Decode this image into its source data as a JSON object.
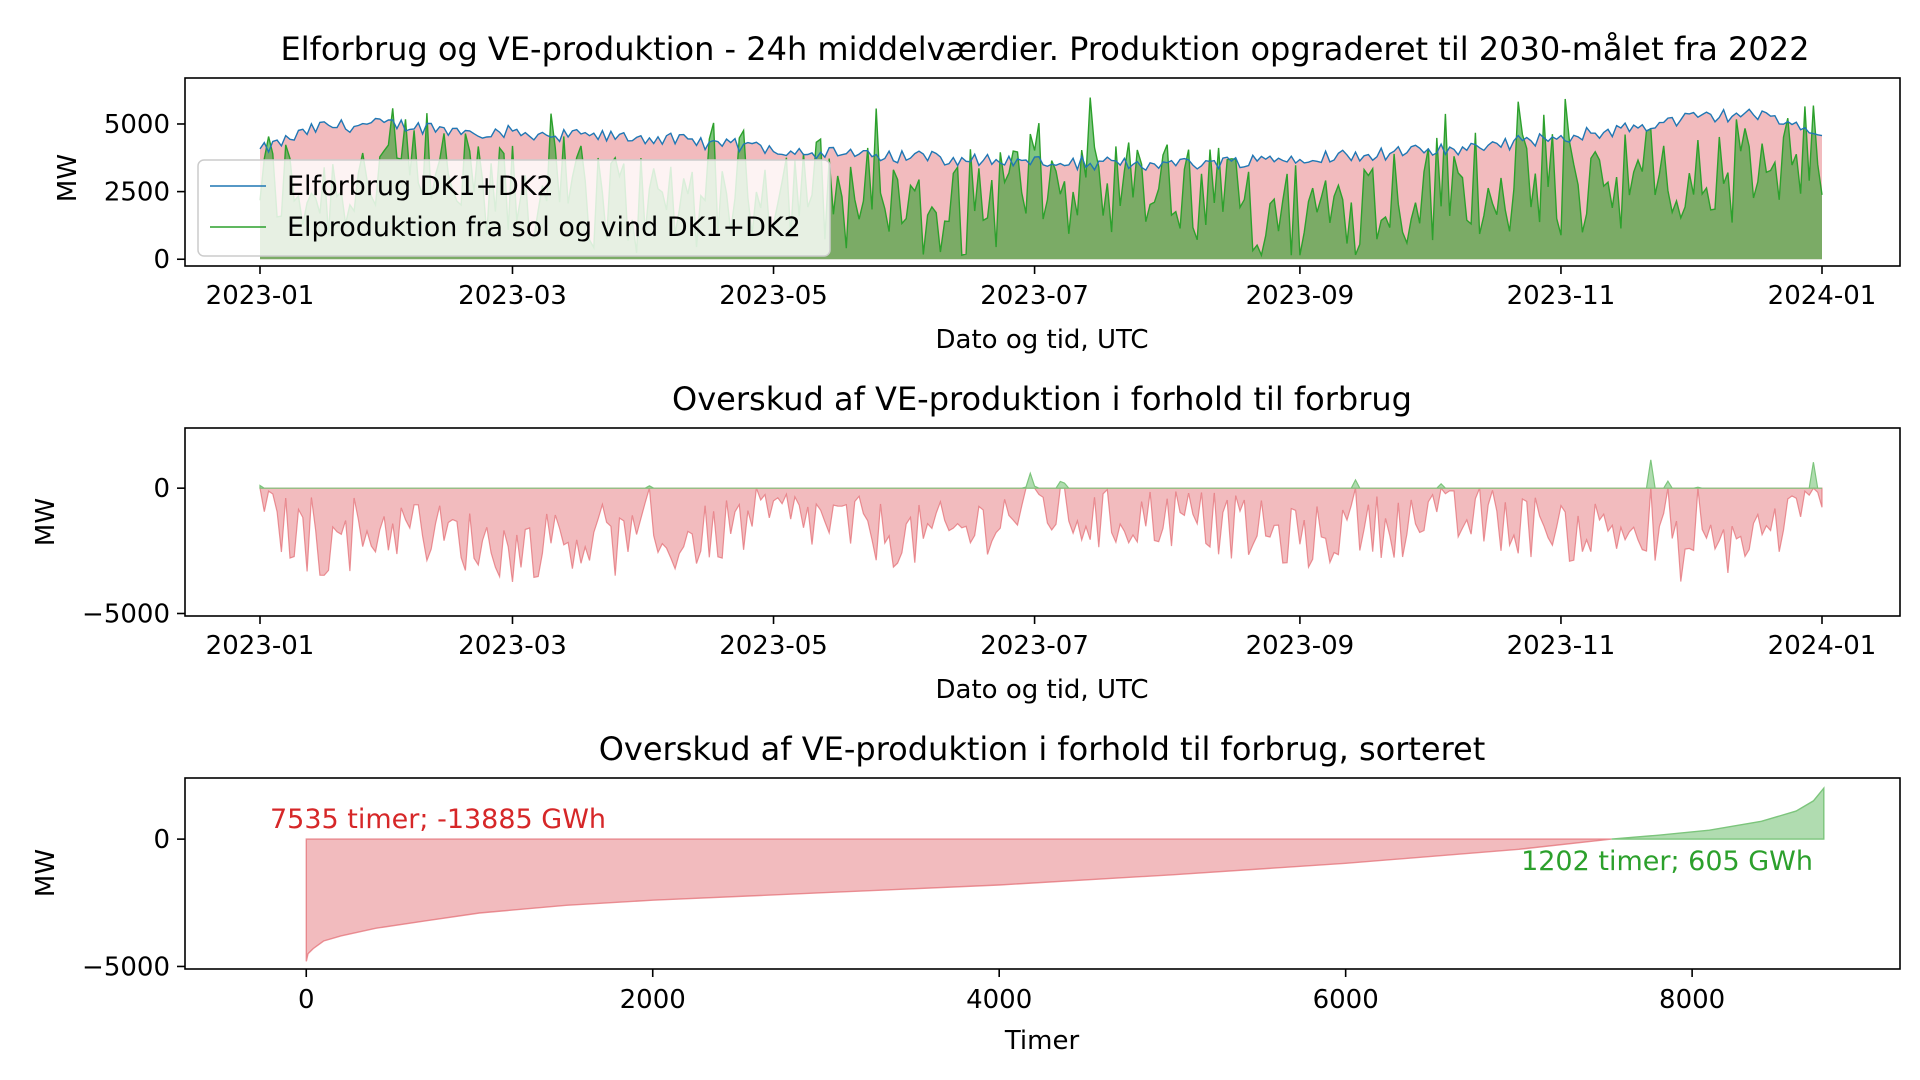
{
  "colors": {
    "consumption": "#1f77b4",
    "production": "#2ca02c",
    "production_fill": "#2ca02c",
    "deficit_fill": "#e3686f",
    "surplus_fill": "#7cc57c",
    "deficit_text": "#d62728",
    "surplus_text": "#2ca02c"
  },
  "chart_data": [
    {
      "type": "area",
      "title": "Elforbrug og VE-produktion - 24h middelværdier. Produktion opgraderet til 2030-målet fra 2022",
      "xlabel": "Dato og tid, UTC",
      "ylabel": "MW",
      "x_range": [
        "2023-01-01",
        "2024-01-01"
      ],
      "ylim": [
        -250,
        6700
      ],
      "xticks": [
        "2023-01",
        "2023-03",
        "2023-05",
        "2023-07",
        "2023-09",
        "2023-11",
        "2024-01"
      ],
      "yticks": [
        0,
        2500,
        5000
      ],
      "ytick_labels": [
        "0",
        "2500",
        "5000"
      ],
      "legend_position": "center-left",
      "series": [
        {
          "name": "Elforbrug DK1+DK2",
          "x": [
            "2023-01-01",
            "2023-01-15",
            "2023-02-01",
            "2023-02-15",
            "2023-03-01",
            "2023-03-15",
            "2023-04-01",
            "2023-04-15",
            "2023-05-01",
            "2023-05-15",
            "2023-06-01",
            "2023-06-15",
            "2023-07-01",
            "2023-07-15",
            "2023-08-01",
            "2023-08-15",
            "2023-09-01",
            "2023-09-15",
            "2023-10-01",
            "2023-10-15",
            "2023-11-01",
            "2023-11-15",
            "2023-12-01",
            "2023-12-15",
            "2024-01-01"
          ],
          "values": [
            4000,
            4900,
            5000,
            4750,
            4700,
            4550,
            4500,
            4300,
            4100,
            3900,
            3800,
            3700,
            3600,
            3550,
            3500,
            3600,
            3800,
            3850,
            4000,
            4200,
            4500,
            4800,
            5200,
            5400,
            4600
          ]
        },
        {
          "name": "Elproduktion fra sol og vind DK1+DK2",
          "x": [
            "2023-01-01",
            "2023-01-15",
            "2023-02-01",
            "2023-02-15",
            "2023-03-01",
            "2023-03-15",
            "2023-04-01",
            "2023-04-15",
            "2023-05-01",
            "2023-05-15",
            "2023-06-01",
            "2023-06-15",
            "2023-07-01",
            "2023-07-15",
            "2023-08-01",
            "2023-08-15",
            "2023-09-01",
            "2023-09-15",
            "2023-10-01",
            "2023-10-15",
            "2023-11-01",
            "2023-11-15",
            "2023-12-01",
            "2023-12-15",
            "2024-01-01"
          ],
          "values": [
            3000,
            2500,
            3500,
            2800,
            2200,
            2600,
            2000,
            2400,
            3000,
            2500,
            1800,
            2000,
            3000,
            2200,
            2400,
            2100,
            1700,
            2300,
            2600,
            3000,
            2800,
            3200,
            2600,
            3400,
            3800
          ]
        }
      ]
    },
    {
      "type": "area",
      "title": "Overskud af VE-produktion i forhold til forbrug",
      "xlabel": "Dato og tid, UTC",
      "ylabel": "MW",
      "x_range": [
        "2023-01-01",
        "2024-01-01"
      ],
      "ylim": [
        -5100,
        2400
      ],
      "xticks": [
        "2023-01",
        "2023-03",
        "2023-05",
        "2023-07",
        "2023-09",
        "2023-11",
        "2024-01"
      ],
      "yticks": [
        -5000,
        0
      ],
      "ytick_labels": [
        "−5000",
        "0"
      ],
      "series": [
        {
          "x": [
            "2023-01-01",
            "2023-01-15",
            "2023-02-01",
            "2023-02-15",
            "2023-03-01",
            "2023-03-15",
            "2023-04-01",
            "2023-04-15",
            "2023-05-01",
            "2023-05-15",
            "2023-06-01",
            "2023-06-15",
            "2023-07-01",
            "2023-07-15",
            "2023-08-01",
            "2023-08-15",
            "2023-09-01",
            "2023-09-15",
            "2023-10-01",
            "2023-10-15",
            "2023-11-01",
            "2023-11-15",
            "2023-12-01",
            "2023-12-15",
            "2024-01-01"
          ],
          "values": [
            -1000,
            -2400,
            -1500,
            -1950,
            -2500,
            -1950,
            -2500,
            -1900,
            -1100,
            -1400,
            -2000,
            -1700,
            -600,
            -1350,
            -1100,
            -1500,
            -2100,
            -1550,
            -1400,
            -1200,
            -1700,
            -1600,
            -2600,
            -2000,
            -800
          ]
        }
      ]
    },
    {
      "type": "area",
      "title": "Overskud af VE-produktion i forhold til forbrug, sorteret",
      "xlabel": "Timer",
      "ylabel": "MW",
      "xlim": [
        -700,
        9200
      ],
      "ylim": [
        -5100,
        2400
      ],
      "xticks": [
        0,
        2000,
        4000,
        6000,
        8000
      ],
      "xtick_labels": [
        "0",
        "2000",
        "4000",
        "6000",
        "8000"
      ],
      "yticks": [
        -5000,
        0
      ],
      "ytick_labels": [
        "−5000",
        "0"
      ],
      "series": [
        {
          "x": [
            0,
            10,
            40,
            100,
            200,
            400,
            700,
            1000,
            1500,
            2000,
            3000,
            4000,
            5000,
            6000,
            7000,
            7535,
            7800,
            8100,
            8400,
            8600,
            8700,
            8760
          ],
          "values": [
            -4800,
            -4500,
            -4300,
            -4000,
            -3800,
            -3500,
            -3200,
            -2900,
            -2600,
            -2400,
            -2100,
            -1800,
            -1400,
            -950,
            -400,
            0,
            150,
            350,
            700,
            1100,
            1500,
            2000
          ]
        }
      ],
      "annotations": [
        {
          "text": "7535 timer; -13885 GWh",
          "color": "#d62728"
        },
        {
          "text": "1202 timer; 605 GWh",
          "color": "#2ca02c"
        }
      ]
    }
  ]
}
